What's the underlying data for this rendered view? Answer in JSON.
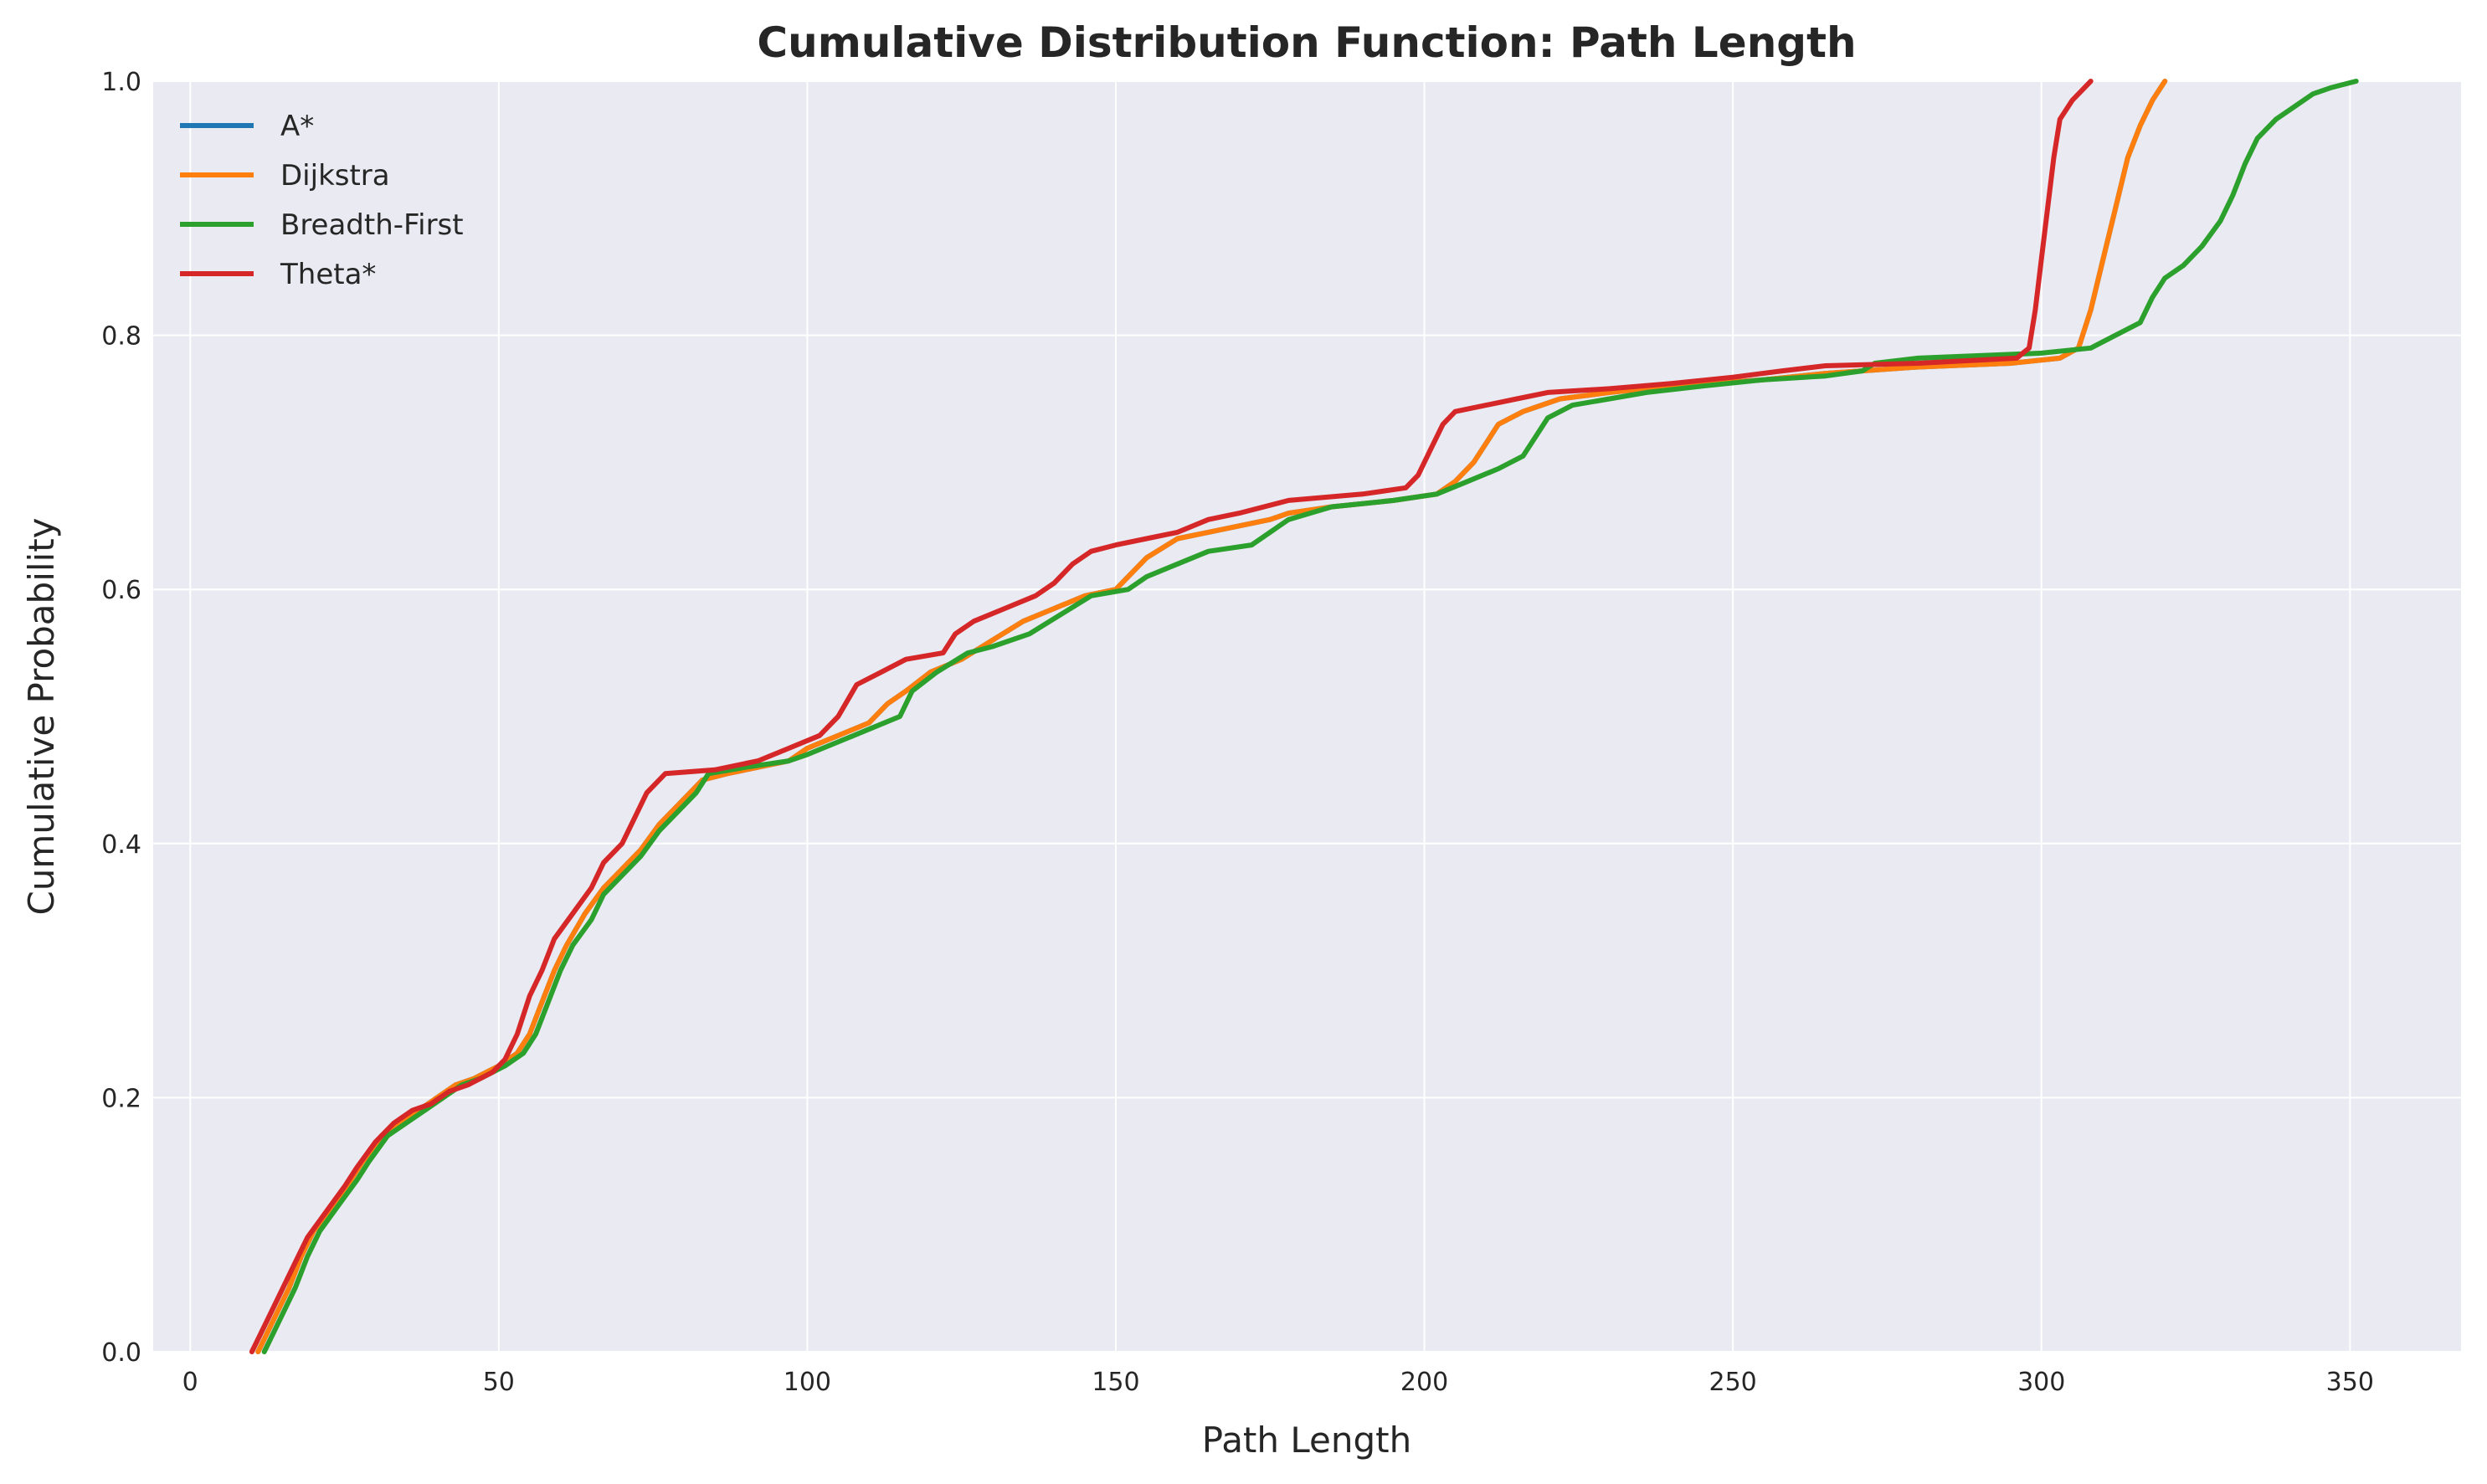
{
  "chart_data": {
    "type": "line",
    "title": "Cumulative Distribution Function: Path Length",
    "xlabel": "Path Length",
    "ylabel": "Cumulative Probability",
    "xlim": [
      -6,
      368
    ],
    "ylim": [
      0,
      1.0
    ],
    "xticks": [
      0,
      50,
      100,
      150,
      200,
      250,
      300,
      350
    ],
    "yticks": [
      0.0,
      0.2,
      0.4,
      0.6,
      0.8,
      1.0
    ],
    "xtick_labels": [
      "0",
      "50",
      "100",
      "150",
      "200",
      "250",
      "300",
      "350"
    ],
    "ytick_labels": [
      "0.0",
      "0.2",
      "0.4",
      "0.6",
      "0.8",
      "1.0"
    ],
    "grid": true,
    "legend_position": "top-left",
    "background_color": "#eaeaf2",
    "series": [
      {
        "name": "A*",
        "color": "#1f77b4",
        "points": [
          [
            11,
            0
          ],
          [
            12,
            0.01
          ],
          [
            14,
            0.03
          ],
          [
            16,
            0.05
          ],
          [
            18,
            0.075
          ],
          [
            20,
            0.095
          ],
          [
            23,
            0.115
          ],
          [
            26,
            0.135
          ],
          [
            28,
            0.15
          ],
          [
            31,
            0.17
          ],
          [
            34,
            0.18
          ],
          [
            37,
            0.19
          ],
          [
            40,
            0.2
          ],
          [
            43,
            0.21
          ],
          [
            46,
            0.215
          ],
          [
            50,
            0.225
          ],
          [
            53,
            0.235
          ],
          [
            55,
            0.25
          ],
          [
            57,
            0.275
          ],
          [
            59,
            0.3
          ],
          [
            61,
            0.32
          ],
          [
            64,
            0.345
          ],
          [
            67,
            0.365
          ],
          [
            70,
            0.38
          ],
          [
            73,
            0.395
          ],
          [
            76,
            0.415
          ],
          [
            79,
            0.43
          ],
          [
            83,
            0.45
          ],
          [
            87,
            0.455
          ],
          [
            92,
            0.46
          ],
          [
            97,
            0.465
          ],
          [
            100,
            0.475
          ],
          [
            105,
            0.485
          ],
          [
            110,
            0.495
          ],
          [
            113,
            0.51
          ],
          [
            116,
            0.52
          ],
          [
            120,
            0.535
          ],
          [
            125,
            0.545
          ],
          [
            130,
            0.56
          ],
          [
            135,
            0.575
          ],
          [
            140,
            0.585
          ],
          [
            145,
            0.595
          ],
          [
            150,
            0.6
          ],
          [
            152,
            0.61
          ],
          [
            155,
            0.625
          ],
          [
            160,
            0.64
          ],
          [
            165,
            0.645
          ],
          [
            170,
            0.65
          ],
          [
            175,
            0.655
          ],
          [
            178,
            0.66
          ],
          [
            185,
            0.665
          ],
          [
            195,
            0.67
          ],
          [
            202,
            0.675
          ],
          [
            205,
            0.685
          ],
          [
            208,
            0.7
          ],
          [
            210,
            0.715
          ],
          [
            212,
            0.73
          ],
          [
            216,
            0.74
          ],
          [
            222,
            0.75
          ],
          [
            230,
            0.755
          ],
          [
            240,
            0.76
          ],
          [
            255,
            0.765
          ],
          [
            265,
            0.77
          ],
          [
            280,
            0.775
          ],
          [
            295,
            0.778
          ],
          [
            303,
            0.782
          ],
          [
            306,
            0.79
          ],
          [
            308,
            0.82
          ],
          [
            310,
            0.86
          ],
          [
            312,
            0.9
          ],
          [
            314,
            0.94
          ],
          [
            316,
            0.965
          ],
          [
            318,
            0.985
          ],
          [
            320,
            1.0
          ]
        ]
      },
      {
        "name": "Dijkstra",
        "color": "#ff7f0e",
        "points": [
          [
            11,
            0
          ],
          [
            12,
            0.01
          ],
          [
            14,
            0.03
          ],
          [
            16,
            0.05
          ],
          [
            18,
            0.075
          ],
          [
            20,
            0.095
          ],
          [
            23,
            0.115
          ],
          [
            26,
            0.135
          ],
          [
            28,
            0.15
          ],
          [
            31,
            0.17
          ],
          [
            34,
            0.18
          ],
          [
            37,
            0.19
          ],
          [
            40,
            0.2
          ],
          [
            43,
            0.21
          ],
          [
            46,
            0.215
          ],
          [
            50,
            0.225
          ],
          [
            53,
            0.235
          ],
          [
            55,
            0.25
          ],
          [
            57,
            0.275
          ],
          [
            59,
            0.3
          ],
          [
            61,
            0.32
          ],
          [
            64,
            0.345
          ],
          [
            67,
            0.365
          ],
          [
            70,
            0.38
          ],
          [
            73,
            0.395
          ],
          [
            76,
            0.415
          ],
          [
            79,
            0.43
          ],
          [
            83,
            0.45
          ],
          [
            87,
            0.455
          ],
          [
            92,
            0.46
          ],
          [
            97,
            0.465
          ],
          [
            100,
            0.475
          ],
          [
            105,
            0.485
          ],
          [
            110,
            0.495
          ],
          [
            113,
            0.51
          ],
          [
            116,
            0.52
          ],
          [
            120,
            0.535
          ],
          [
            125,
            0.545
          ],
          [
            130,
            0.56
          ],
          [
            135,
            0.575
          ],
          [
            140,
            0.585
          ],
          [
            145,
            0.595
          ],
          [
            150,
            0.6
          ],
          [
            152,
            0.61
          ],
          [
            155,
            0.625
          ],
          [
            160,
            0.64
          ],
          [
            165,
            0.645
          ],
          [
            170,
            0.65
          ],
          [
            175,
            0.655
          ],
          [
            178,
            0.66
          ],
          [
            185,
            0.665
          ],
          [
            195,
            0.67
          ],
          [
            202,
            0.675
          ],
          [
            205,
            0.685
          ],
          [
            208,
            0.7
          ],
          [
            210,
            0.715
          ],
          [
            212,
            0.73
          ],
          [
            216,
            0.74
          ],
          [
            222,
            0.75
          ],
          [
            230,
            0.755
          ],
          [
            240,
            0.76
          ],
          [
            255,
            0.765
          ],
          [
            265,
            0.77
          ],
          [
            280,
            0.775
          ],
          [
            295,
            0.778
          ],
          [
            303,
            0.782
          ],
          [
            306,
            0.79
          ],
          [
            308,
            0.82
          ],
          [
            310,
            0.86
          ],
          [
            312,
            0.9
          ],
          [
            314,
            0.94
          ],
          [
            316,
            0.965
          ],
          [
            318,
            0.985
          ],
          [
            320,
            1.0
          ]
        ]
      },
      {
        "name": "Breadth-First",
        "color": "#2ca02c",
        "points": [
          [
            12,
            0
          ],
          [
            13,
            0.01
          ],
          [
            15,
            0.03
          ],
          [
            17,
            0.05
          ],
          [
            19,
            0.075
          ],
          [
            21,
            0.095
          ],
          [
            24,
            0.115
          ],
          [
            27,
            0.135
          ],
          [
            29,
            0.15
          ],
          [
            32,
            0.17
          ],
          [
            35,
            0.18
          ],
          [
            38,
            0.19
          ],
          [
            41,
            0.2
          ],
          [
            44,
            0.21
          ],
          [
            47,
            0.215
          ],
          [
            51,
            0.225
          ],
          [
            54,
            0.235
          ],
          [
            56,
            0.25
          ],
          [
            58,
            0.275
          ],
          [
            60,
            0.3
          ],
          [
            62,
            0.32
          ],
          [
            65,
            0.34
          ],
          [
            67,
            0.36
          ],
          [
            70,
            0.375
          ],
          [
            73,
            0.39
          ],
          [
            76,
            0.41
          ],
          [
            79,
            0.425
          ],
          [
            82,
            0.44
          ],
          [
            84,
            0.455
          ],
          [
            90,
            0.46
          ],
          [
            97,
            0.465
          ],
          [
            100,
            0.47
          ],
          [
            105,
            0.48
          ],
          [
            110,
            0.49
          ],
          [
            115,
            0.5
          ],
          [
            117,
            0.52
          ],
          [
            121,
            0.535
          ],
          [
            126,
            0.55
          ],
          [
            130,
            0.555
          ],
          [
            136,
            0.565
          ],
          [
            141,
            0.58
          ],
          [
            146,
            0.595
          ],
          [
            152,
            0.6
          ],
          [
            155,
            0.61
          ],
          [
            160,
            0.62
          ],
          [
            165,
            0.63
          ],
          [
            172,
            0.635
          ],
          [
            175,
            0.645
          ],
          [
            178,
            0.655
          ],
          [
            185,
            0.665
          ],
          [
            195,
            0.67
          ],
          [
            202,
            0.675
          ],
          [
            207,
            0.685
          ],
          [
            212,
            0.695
          ],
          [
            216,
            0.705
          ],
          [
            218,
            0.72
          ],
          [
            220,
            0.735
          ],
          [
            224,
            0.745
          ],
          [
            230,
            0.75
          ],
          [
            236,
            0.755
          ],
          [
            245,
            0.76
          ],
          [
            255,
            0.765
          ],
          [
            265,
            0.768
          ],
          [
            271,
            0.772
          ],
          [
            273,
            0.778
          ],
          [
            280,
            0.782
          ],
          [
            300,
            0.786
          ],
          [
            308,
            0.79
          ],
          [
            312,
            0.8
          ],
          [
            316,
            0.81
          ],
          [
            318,
            0.83
          ],
          [
            320,
            0.845
          ],
          [
            323,
            0.855
          ],
          [
            326,
            0.87
          ],
          [
            329,
            0.89
          ],
          [
            331,
            0.91
          ],
          [
            333,
            0.935
          ],
          [
            335,
            0.955
          ],
          [
            338,
            0.97
          ],
          [
            341,
            0.98
          ],
          [
            344,
            0.99
          ],
          [
            347,
            0.995
          ],
          [
            351,
            1.0
          ]
        ]
      },
      {
        "name": "Theta*",
        "color": "#d62728",
        "points": [
          [
            10,
            0
          ],
          [
            11,
            0.01
          ],
          [
            13,
            0.03
          ],
          [
            15,
            0.05
          ],
          [
            17,
            0.07
          ],
          [
            19,
            0.09
          ],
          [
            22,
            0.11
          ],
          [
            25,
            0.13
          ],
          [
            27,
            0.145
          ],
          [
            30,
            0.165
          ],
          [
            33,
            0.18
          ],
          [
            36,
            0.19
          ],
          [
            39,
            0.195
          ],
          [
            42,
            0.205
          ],
          [
            45,
            0.21
          ],
          [
            49,
            0.22
          ],
          [
            51,
            0.23
          ],
          [
            53,
            0.25
          ],
          [
            55,
            0.28
          ],
          [
            57,
            0.3
          ],
          [
            59,
            0.325
          ],
          [
            62,
            0.345
          ],
          [
            65,
            0.365
          ],
          [
            67,
            0.385
          ],
          [
            70,
            0.4
          ],
          [
            72,
            0.42
          ],
          [
            74,
            0.44
          ],
          [
            77,
            0.455
          ],
          [
            85,
            0.458
          ],
          [
            92,
            0.465
          ],
          [
            97,
            0.475
          ],
          [
            102,
            0.485
          ],
          [
            105,
            0.5
          ],
          [
            108,
            0.525
          ],
          [
            112,
            0.535
          ],
          [
            116,
            0.545
          ],
          [
            122,
            0.55
          ],
          [
            124,
            0.565
          ],
          [
            127,
            0.575
          ],
          [
            132,
            0.585
          ],
          [
            137,
            0.595
          ],
          [
            140,
            0.605
          ],
          [
            143,
            0.62
          ],
          [
            146,
            0.63
          ],
          [
            150,
            0.635
          ],
          [
            155,
            0.64
          ],
          [
            160,
            0.645
          ],
          [
            165,
            0.655
          ],
          [
            170,
            0.66
          ],
          [
            178,
            0.67
          ],
          [
            190,
            0.675
          ],
          [
            197,
            0.68
          ],
          [
            199,
            0.69
          ],
          [
            201,
            0.71
          ],
          [
            203,
            0.73
          ],
          [
            205,
            0.74
          ],
          [
            210,
            0.745
          ],
          [
            215,
            0.75
          ],
          [
            220,
            0.755
          ],
          [
            230,
            0.758
          ],
          [
            240,
            0.762
          ],
          [
            250,
            0.767
          ],
          [
            258,
            0.772
          ],
          [
            265,
            0.776
          ],
          [
            280,
            0.778
          ],
          [
            296,
            0.782
          ],
          [
            298,
            0.79
          ],
          [
            299,
            0.82
          ],
          [
            300,
            0.86
          ],
          [
            301,
            0.9
          ],
          [
            302,
            0.94
          ],
          [
            303,
            0.97
          ],
          [
            305,
            0.985
          ],
          [
            308,
            1.0
          ]
        ]
      }
    ]
  }
}
